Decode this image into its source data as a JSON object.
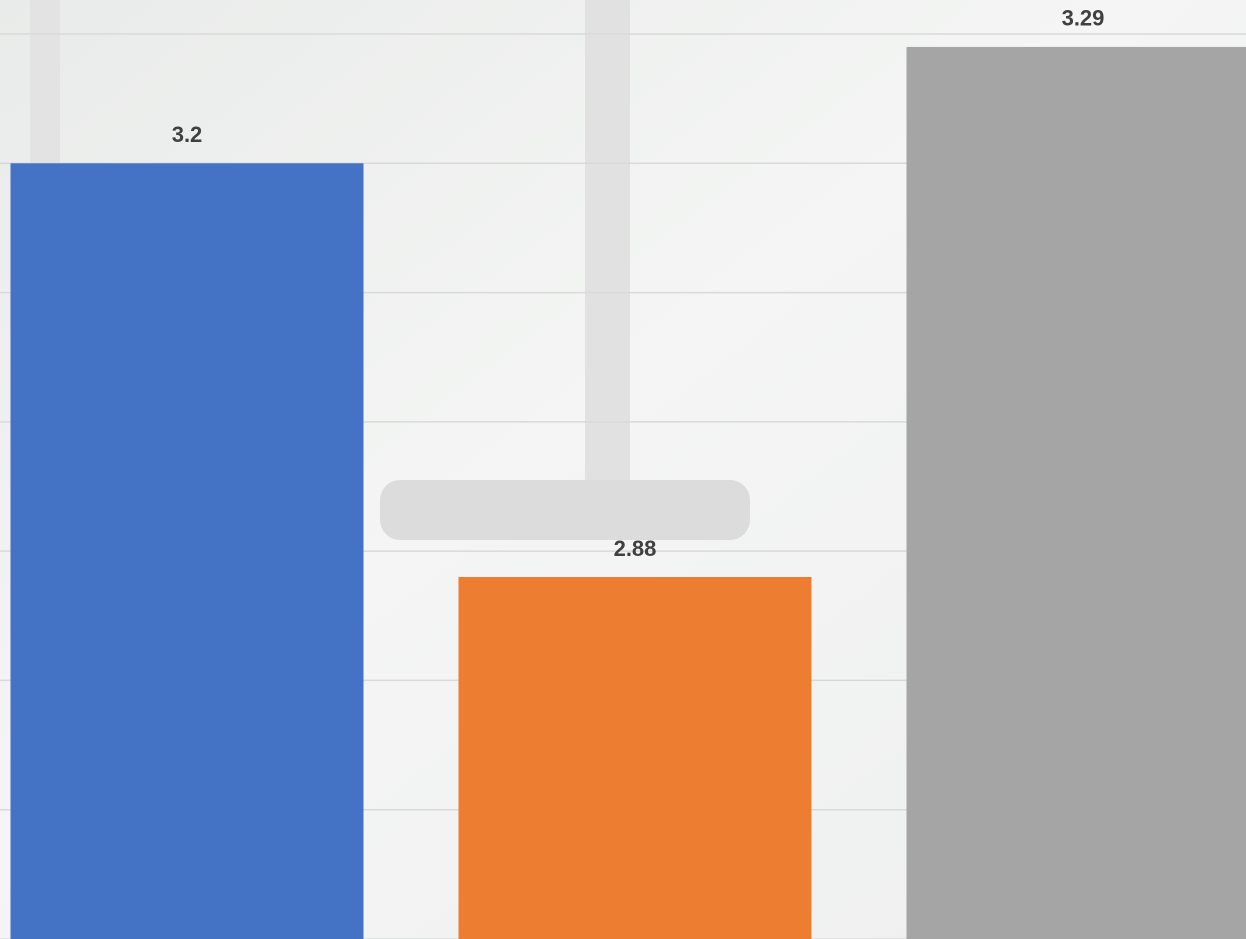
{
  "chart_data": {
    "type": "bar",
    "categories": [
      null,
      null,
      null
    ],
    "values": [
      3.2,
      2.88,
      3.29
    ],
    "colors": [
      "#4472c4",
      "#ed7d31",
      "#a5a5a5"
    ],
    "ylim": [
      2.6,
      3.3
    ],
    "yticks": [
      2.6,
      2.7,
      2.8,
      2.9,
      3.0,
      3.1,
      3.2,
      3.3
    ],
    "grid": true
  }
}
